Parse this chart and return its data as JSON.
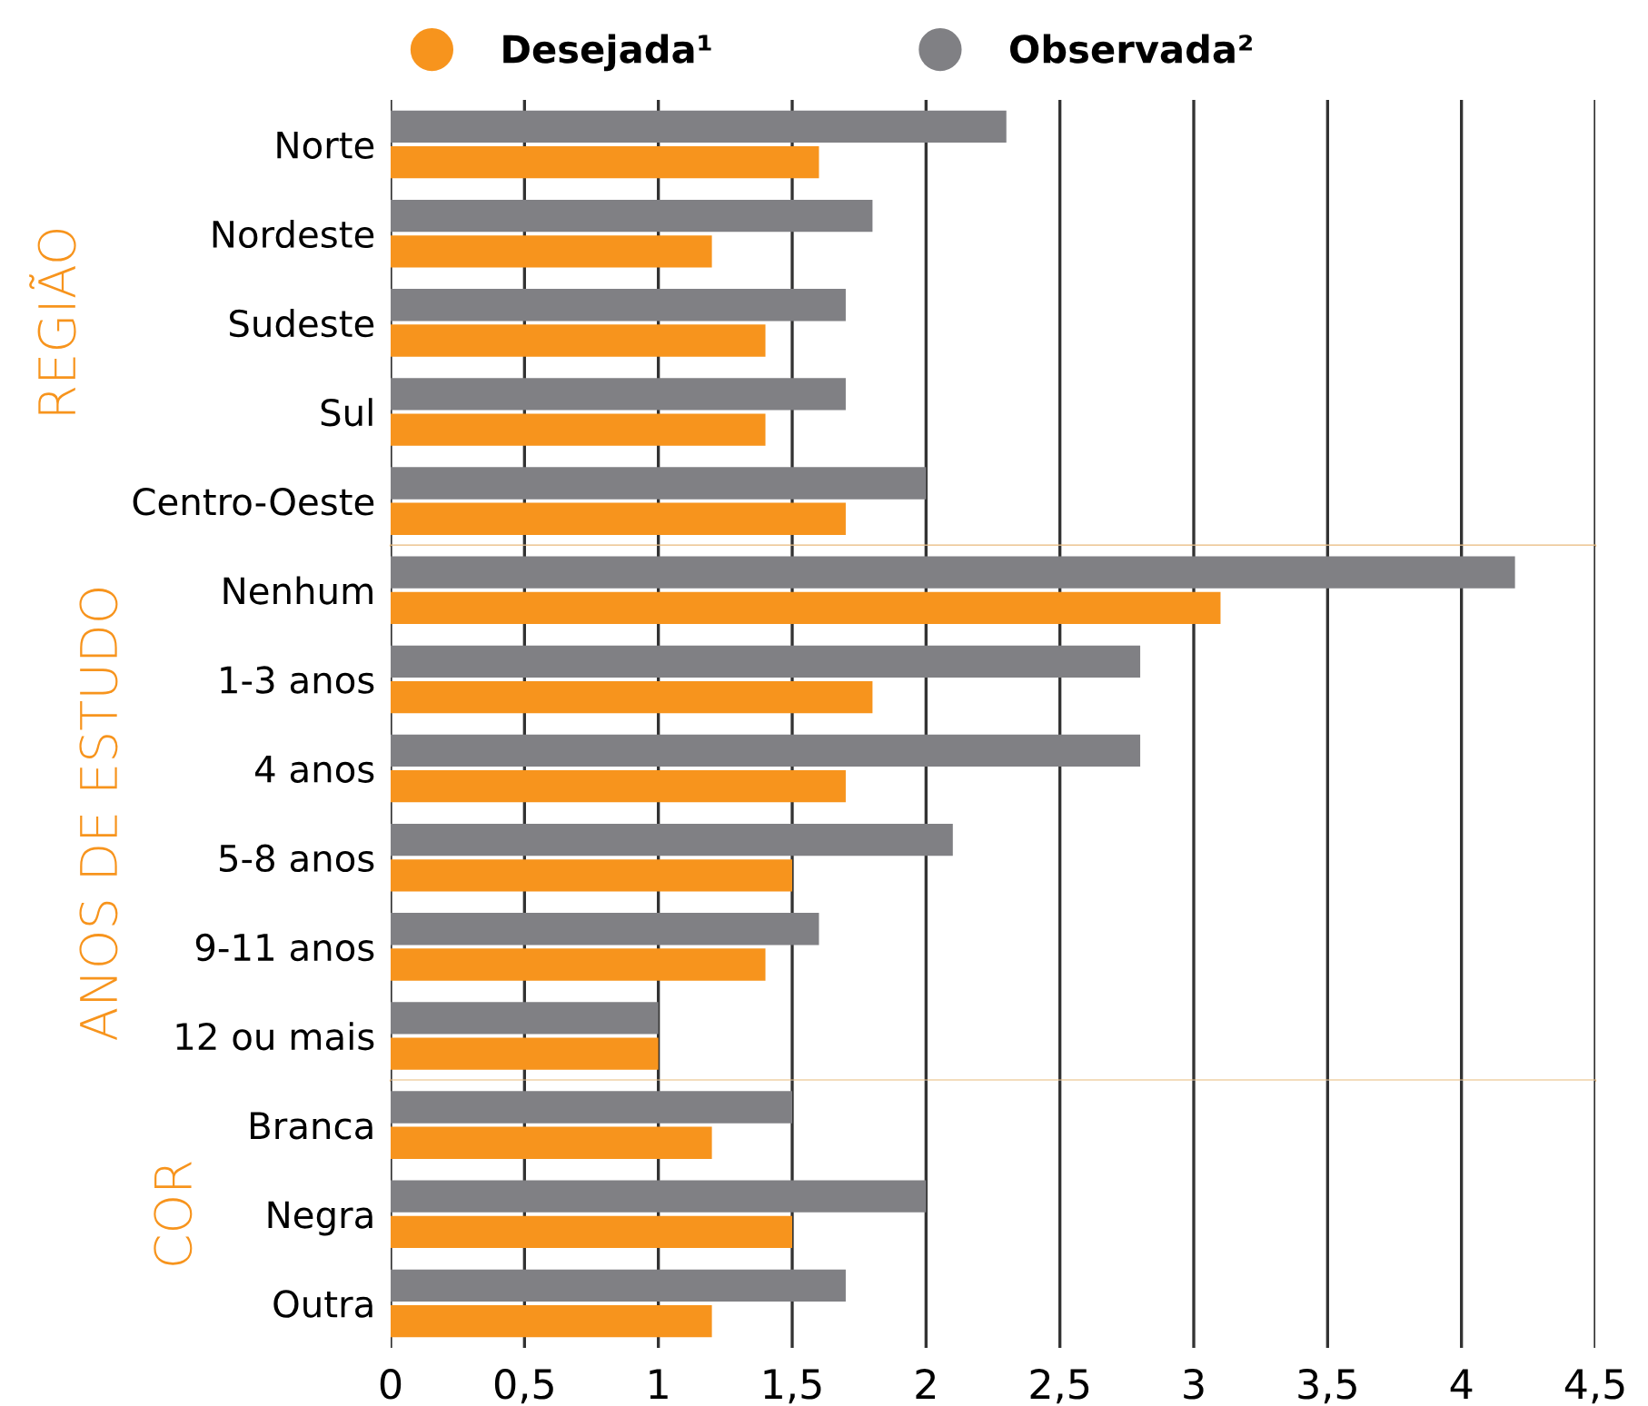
{
  "chart_data": [
    {
      "type": "bar",
      "orientation": "horizontal",
      "ylabel": "REGIÃO",
      "legend": "top",
      "grid": "x",
      "tick_labels": "y",
      "categories": [
        "Norte",
        "Nordeste",
        "Sudeste",
        "Sul",
        "Centro-Oeste"
      ],
      "series": [
        {
          "name": "Desejada¹",
          "color": "#f7941d",
          "values": [
            1.6,
            1.2,
            1.4,
            1.4,
            1.7
          ]
        },
        {
          "name": "Observada²",
          "color": "#808084",
          "values": [
            2.3,
            1.8,
            1.7,
            1.7,
            2.0
          ]
        }
      ],
      "xlim": [
        0,
        4.5
      ],
      "xticks": [
        {
          "value": 0,
          "label": null
        },
        {
          "value": 0.5,
          "label": null
        },
        {
          "value": 1,
          "label": null
        },
        {
          "value": 1.5,
          "label": null
        },
        {
          "value": 2,
          "label": null
        },
        {
          "value": 2.5,
          "label": null
        },
        {
          "value": 3,
          "label": null
        },
        {
          "value": 3.5,
          "label": null
        },
        {
          "value": 4,
          "label": null
        },
        {
          "value": 4.5,
          "label": null
        }
      ]
    },
    {
      "type": "bar",
      "orientation": "horizontal",
      "ylabel": "ANOS DE ESTUDO",
      "grid": "x",
      "tick_labels": "y",
      "categories": [
        "Nenhum",
        "1-3 anos",
        "4 anos",
        "5-8 anos",
        "9-11 anos",
        "12 ou mais"
      ],
      "series": [
        {
          "color": "#f7941d",
          "values": [
            3.1,
            1.8,
            1.7,
            1.5,
            1.4,
            1.0
          ]
        },
        {
          "color": "#808084",
          "values": [
            4.2,
            2.8,
            2.8,
            2.1,
            1.6,
            1.0
          ]
        }
      ],
      "xlim": [
        0,
        4.5
      ],
      "xticks": [
        {
          "value": 0,
          "label": null
        },
        {
          "value": 0.5,
          "label": null
        },
        {
          "value": 1,
          "label": null
        },
        {
          "value": 1.5,
          "label": null
        },
        {
          "value": 2,
          "label": null
        },
        {
          "value": 2.5,
          "label": null
        },
        {
          "value": 3,
          "label": null
        },
        {
          "value": 3.5,
          "label": null
        },
        {
          "value": 4,
          "label": null
        },
        {
          "value": 4.5,
          "label": null
        }
      ]
    },
    {
      "type": "bar",
      "orientation": "horizontal",
      "ylabel": "COR",
      "grid": "x",
      "categories": [
        "Branca",
        "Negra",
        "Outra"
      ],
      "series": [
        {
          "color": "#f7941d",
          "values": [
            1.2,
            1.5,
            1.2
          ]
        },
        {
          "color": "#808084",
          "values": [
            1.5,
            2.0,
            1.7
          ]
        }
      ],
      "xlim": [
        0,
        4.5
      ],
      "xticks": [
        0,
        {
          "value": 0.5,
          "label": "0,5"
        },
        1,
        {
          "value": 1.5,
          "label": "1,5"
        },
        2,
        {
          "value": 2.5,
          "label": "2,5"
        },
        3,
        {
          "value": 3.5,
          "label": "3,5"
        },
        4,
        {
          "value": 4.5,
          "label": "4,5"
        }
      ]
    }
  ]
}
